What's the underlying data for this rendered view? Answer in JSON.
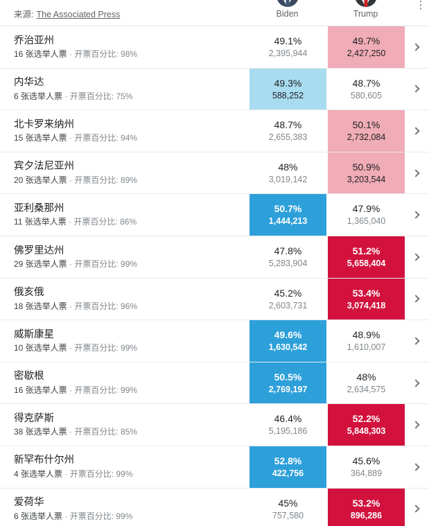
{
  "header": {
    "source_label": "来源:",
    "source_link": "The Associated Press",
    "biden_label": "Biden",
    "trump_label": "Trump",
    "kebab_glyph": "⋮"
  },
  "colors": {
    "biden_solid": "#2da0da",
    "biden_light": "#a8dcf0",
    "trump_solid": "#d2123d",
    "trump_light": "#f0acb7"
  },
  "row_sep": "·",
  "rows": [
    {
      "state": "乔治亚州",
      "ev": "16 张选举人票",
      "reporting": "开票百分比: 98%",
      "biden": {
        "pct": "49.1%",
        "votes": "2,395,944",
        "hl": "none"
      },
      "trump": {
        "pct": "49.7%",
        "votes": "2,427,250",
        "hl": "light"
      }
    },
    {
      "state": "内华达",
      "ev": "6 张选举人票",
      "reporting": "开票百分比: 75%",
      "biden": {
        "pct": "49.3%",
        "votes": "588,252",
        "hl": "light"
      },
      "trump": {
        "pct": "48.7%",
        "votes": "580,605",
        "hl": "none"
      }
    },
    {
      "state": "北卡罗来纳州",
      "ev": "15 张选举人票",
      "reporting": "开票百分比: 94%",
      "biden": {
        "pct": "48.7%",
        "votes": "2,655,383",
        "hl": "none"
      },
      "trump": {
        "pct": "50.1%",
        "votes": "2,732,084",
        "hl": "light"
      }
    },
    {
      "state": "宾夕法尼亚州",
      "ev": "20 张选举人票",
      "reporting": "开票百分比: 89%",
      "biden": {
        "pct": "48%",
        "votes": "3,019,142",
        "hl": "none"
      },
      "trump": {
        "pct": "50.9%",
        "votes": "3,203,544",
        "hl": "light"
      }
    },
    {
      "state": "亚利桑那州",
      "ev": "11 张选举人票",
      "reporting": "开票百分比: 86%",
      "biden": {
        "pct": "50.7%",
        "votes": "1,444,213",
        "hl": "solid"
      },
      "trump": {
        "pct": "47.9%",
        "votes": "1,365,040",
        "hl": "none"
      }
    },
    {
      "state": "佛罗里达州",
      "ev": "29 张选举人票",
      "reporting": "开票百分比: 99%",
      "biden": {
        "pct": "47.8%",
        "votes": "5,283,904",
        "hl": "none"
      },
      "trump": {
        "pct": "51.2%",
        "votes": "5,658,404",
        "hl": "solid"
      }
    },
    {
      "state": "俄亥俄",
      "ev": "18 张选举人票",
      "reporting": "开票百分比: 96%",
      "biden": {
        "pct": "45.2%",
        "votes": "2,603,731",
        "hl": "none"
      },
      "trump": {
        "pct": "53.4%",
        "votes": "3,074,418",
        "hl": "solid"
      }
    },
    {
      "state": "威斯康星",
      "ev": "10 张选举人票",
      "reporting": "开票百分比: 99%",
      "biden": {
        "pct": "49.6%",
        "votes": "1,630,542",
        "hl": "solid"
      },
      "trump": {
        "pct": "48.9%",
        "votes": "1,610,007",
        "hl": "none"
      }
    },
    {
      "state": "密歇根",
      "ev": "16 张选举人票",
      "reporting": "开票百分比: 99%",
      "biden": {
        "pct": "50.5%",
        "votes": "2,769,197",
        "hl": "solid"
      },
      "trump": {
        "pct": "48%",
        "votes": "2,634,575",
        "hl": "none"
      }
    },
    {
      "state": "得克萨斯",
      "ev": "38 张选举人票",
      "reporting": "开票百分比: 85%",
      "biden": {
        "pct": "46.4%",
        "votes": "5,195,186",
        "hl": "none"
      },
      "trump": {
        "pct": "52.2%",
        "votes": "5,848,303",
        "hl": "solid"
      }
    },
    {
      "state": "新罕布什尔州",
      "ev": "4 张选举人票",
      "reporting": "开票百分比: 99%",
      "biden": {
        "pct": "52.8%",
        "votes": "422,756",
        "hl": "solid"
      },
      "trump": {
        "pct": "45.6%",
        "votes": "364,889",
        "hl": "none"
      }
    },
    {
      "state": "爱荷华",
      "ev": "6 张选举人票",
      "reporting": "开票百分比: 99%",
      "biden": {
        "pct": "45%",
        "votes": "757,580",
        "hl": "none"
      },
      "trump": {
        "pct": "53.2%",
        "votes": "896,286",
        "hl": "solid"
      }
    }
  ]
}
